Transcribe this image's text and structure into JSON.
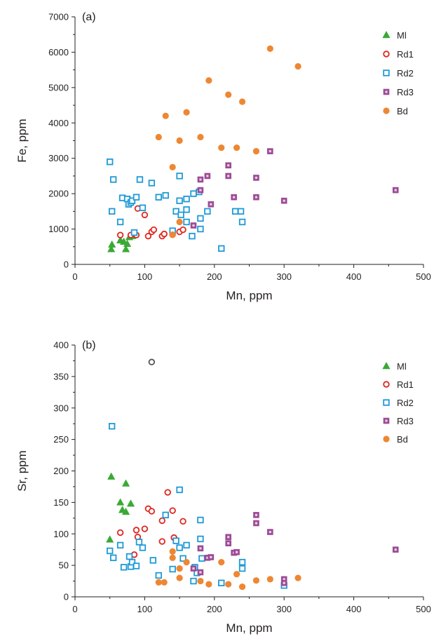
{
  "chart_data": [
    {
      "type": "scatter",
      "panel_label": "(a)",
      "xlabel": "Mn, ppm",
      "ylabel": "Fe, ppm",
      "xlim": [
        0,
        500
      ],
      "ylim": [
        0,
        7000
      ],
      "xticks": [
        0,
        100,
        200,
        300,
        400,
        500
      ],
      "yticks": [
        0,
        1000,
        2000,
        3000,
        4000,
        5000,
        6000,
        7000
      ],
      "grid": false,
      "legend_position": "top-right",
      "series": [
        {
          "name": "Ml",
          "marker": "triangle",
          "color": "#3aa935",
          "points": [
            [
              52,
              430
            ],
            [
              53,
              560
            ],
            [
              65,
              680
            ],
            [
              70,
              640
            ],
            [
              73,
              430
            ],
            [
              75,
              580
            ],
            [
              78,
              770
            ],
            [
              82,
              800
            ]
          ]
        },
        {
          "name": "Rd1",
          "marker": "open-circle",
          "color": "#e0261f",
          "points": [
            [
              65,
              830
            ],
            [
              80,
              830
            ],
            [
              88,
              830
            ],
            [
              90,
              1580
            ],
            [
              100,
              1400
            ],
            [
              105,
              800
            ],
            [
              110,
              920
            ],
            [
              113,
              980
            ],
            [
              125,
              800
            ],
            [
              128,
              860
            ],
            [
              140,
              840
            ],
            [
              150,
              920
            ],
            [
              155,
              980
            ]
          ]
        },
        {
          "name": "Rd2",
          "marker": "open-square",
          "color": "#1e9ad6",
          "points": [
            [
              50,
              2900
            ],
            [
              53,
              1500
            ],
            [
              55,
              2400
            ],
            [
              65,
              1200
            ],
            [
              68,
              1880
            ],
            [
              75,
              1850
            ],
            [
              77,
              1700
            ],
            [
              80,
              1750
            ],
            [
              82,
              1800
            ],
            [
              85,
              900
            ],
            [
              88,
              1900
            ],
            [
              93,
              2400
            ],
            [
              97,
              1600
            ],
            [
              110,
              2300
            ],
            [
              120,
              1900
            ],
            [
              130,
              1950
            ],
            [
              140,
              950
            ],
            [
              145,
              1500
            ],
            [
              150,
              2500
            ],
            [
              150,
              1800
            ],
            [
              152,
              1400
            ],
            [
              160,
              1850
            ],
            [
              160,
              1550
            ],
            [
              160,
              1200
            ],
            [
              168,
              800
            ],
            [
              170,
              2000
            ],
            [
              178,
              2050
            ],
            [
              180,
              1300
            ],
            [
              180,
              1000
            ],
            [
              190,
              1500
            ],
            [
              210,
              450
            ],
            [
              230,
              1500
            ],
            [
              238,
              1500
            ],
            [
              240,
              1200
            ]
          ]
        },
        {
          "name": "Rd3",
          "marker": "filled-square",
          "color": "#9d4a96",
          "points": [
            [
              170,
              1100
            ],
            [
              180,
              2100
            ],
            [
              180,
              2400
            ],
            [
              190,
              2500
            ],
            [
              195,
              1700
            ],
            [
              220,
              2500
            ],
            [
              220,
              2800
            ],
            [
              228,
              1900
            ],
            [
              260,
              2450
            ],
            [
              260,
              1900
            ],
            [
              280,
              3200
            ],
            [
              300,
              1800
            ],
            [
              460,
              2100
            ]
          ]
        },
        {
          "name": "Bd",
          "marker": "filled-circle",
          "color": "#ee8732",
          "points": [
            [
              120,
              3600
            ],
            [
              130,
              4200
            ],
            [
              140,
              2750
            ],
            [
              140,
              840
            ],
            [
              150,
              3500
            ],
            [
              150,
              1200
            ],
            [
              160,
              4300
            ],
            [
              180,
              3600
            ],
            [
              192,
              5200
            ],
            [
              210,
              3300
            ],
            [
              220,
              4800
            ],
            [
              232,
              3300
            ],
            [
              240,
              4600
            ],
            [
              260,
              3200
            ],
            [
              280,
              6100
            ],
            [
              320,
              5600
            ]
          ]
        }
      ]
    },
    {
      "type": "scatter",
      "panel_label": "(b)",
      "xlabel": "Mn, ppm",
      "ylabel": "Sr, ppm",
      "xlim": [
        0,
        500
      ],
      "ylim": [
        0,
        400
      ],
      "xticks": [
        0,
        100,
        200,
        300,
        400,
        500
      ],
      "yticks": [
        0,
        50,
        100,
        150,
        200,
        250,
        300,
        350,
        400
      ],
      "grid": false,
      "legend_position": "top-right",
      "series": [
        {
          "name": "Ml",
          "marker": "triangle",
          "color": "#3aa935",
          "points": [
            [
              50,
              91
            ],
            [
              52,
              191
            ],
            [
              65,
              150
            ],
            [
              68,
              138
            ],
            [
              73,
              180
            ],
            [
              73,
              135
            ],
            [
              80,
              148
            ]
          ]
        },
        {
          "name": "Rd1",
          "marker": "open-circle",
          "color": "#e0261f",
          "points": [
            [
              65,
              102
            ],
            [
              85,
              67
            ],
            [
              88,
              106
            ],
            [
              90,
              95
            ],
            [
              100,
              108
            ],
            [
              105,
              140
            ],
            [
              110,
              136
            ],
            [
              125,
              88
            ],
            [
              125,
              121
            ],
            [
              133,
              166
            ],
            [
              140,
              137
            ],
            [
              142,
              94
            ],
            [
              155,
              120
            ]
          ]
        },
        {
          "name": "Rd2",
          "marker": "open-square",
          "color": "#1e9ad6",
          "points": [
            [
              50,
              73
            ],
            [
              53,
              271
            ],
            [
              55,
              62
            ],
            [
              65,
              82
            ],
            [
              70,
              47
            ],
            [
              78,
              64
            ],
            [
              80,
              48
            ],
            [
              82,
              55
            ],
            [
              88,
              49
            ],
            [
              92,
              87
            ],
            [
              97,
              78
            ],
            [
              112,
              58
            ],
            [
              120,
              34
            ],
            [
              130,
              130
            ],
            [
              140,
              44
            ],
            [
              145,
              89
            ],
            [
              150,
              170
            ],
            [
              150,
              78
            ],
            [
              155,
              61
            ],
            [
              160,
              82
            ],
            [
              170,
              25
            ],
            [
              172,
              47
            ],
            [
              175,
              38
            ],
            [
              180,
              92
            ],
            [
              180,
              122
            ],
            [
              182,
              61
            ],
            [
              210,
              22
            ],
            [
              240,
              55
            ],
            [
              240,
              45
            ],
            [
              300,
              18
            ]
          ]
        },
        {
          "name": "Rd3",
          "marker": "filled-square",
          "color": "#9d4a96",
          "points": [
            [
              170,
              45
            ],
            [
              180,
              77
            ],
            [
              180,
              39
            ],
            [
              190,
              62
            ],
            [
              195,
              63
            ],
            [
              220,
              95
            ],
            [
              220,
              85
            ],
            [
              228,
              70
            ],
            [
              232,
              71
            ],
            [
              260,
              130
            ],
            [
              260,
              117
            ],
            [
              280,
              103
            ],
            [
              300,
              28
            ],
            [
              300,
              22
            ],
            [
              460,
              75
            ]
          ]
        },
        {
          "name": "Bd",
          "marker": "filled-circle",
          "color": "#ee8732",
          "points": [
            [
              120,
              23
            ],
            [
              128,
              23
            ],
            [
              140,
              72
            ],
            [
              140,
              62
            ],
            [
              150,
              45
            ],
            [
              150,
              30
            ],
            [
              160,
              55
            ],
            [
              180,
              25
            ],
            [
              192,
              20
            ],
            [
              210,
              55
            ],
            [
              220,
              20
            ],
            [
              232,
              36
            ],
            [
              240,
              16
            ],
            [
              260,
              26
            ],
            [
              280,
              28
            ],
            [
              320,
              30
            ]
          ]
        },
        {
          "name": "",
          "marker": "open-circle",
          "color": "#555555",
          "legend": false,
          "points": [
            [
              110,
              373
            ]
          ]
        }
      ]
    }
  ]
}
